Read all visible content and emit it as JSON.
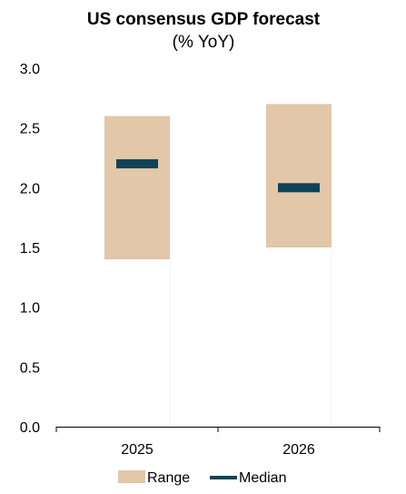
{
  "chart_data": {
    "type": "bar",
    "title": "US consensus GDP forecast",
    "subtitle": "(% YoY)",
    "categories": [
      "2025",
      "2026"
    ],
    "series": [
      {
        "name": "Range",
        "low": [
          1.4,
          1.5
        ],
        "high": [
          2.6,
          2.7
        ],
        "color": "#e2c7a9"
      },
      {
        "name": "Median",
        "values": [
          2.2,
          2.0
        ],
        "color": "#0e4256"
      }
    ],
    "ylim": [
      0,
      3.0
    ],
    "yticks": [
      "0.0",
      "0.5",
      "1.0",
      "1.5",
      "2.0",
      "2.5",
      "3.0"
    ],
    "xlabel": "",
    "ylabel": "",
    "grid": false,
    "legend_position": "bottom"
  }
}
